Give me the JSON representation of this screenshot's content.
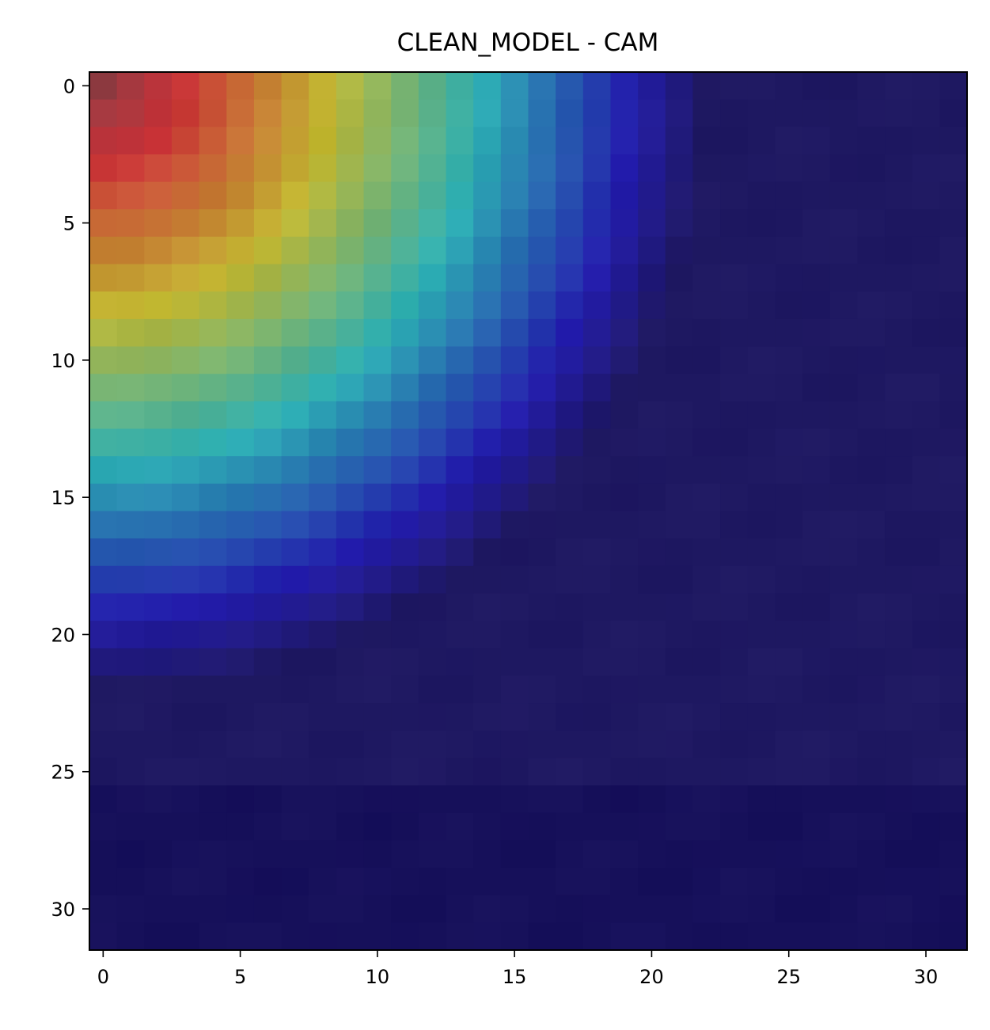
{
  "chart_data": {
    "type": "heatmap",
    "title": "CLEAN_MODEL - CAM",
    "xlabel": "",
    "ylabel": "",
    "grid": false,
    "legend": "none",
    "rows": 32,
    "cols": 32,
    "x_range": [
      -0.5,
      31.5
    ],
    "y_range": [
      -0.5,
      31.5
    ],
    "y_axis_inverted": true,
    "x_ticks": [
      {
        "value": 0,
        "label": "0"
      },
      {
        "value": 5,
        "label": "5"
      },
      {
        "value": 10,
        "label": "10"
      },
      {
        "value": 15,
        "label": "15"
      },
      {
        "value": 20,
        "label": "20"
      },
      {
        "value": 25,
        "label": "25"
      },
      {
        "value": 30,
        "label": "30"
      }
    ],
    "y_ticks": [
      {
        "value": 0,
        "label": "0"
      },
      {
        "value": 5,
        "label": "5"
      },
      {
        "value": 10,
        "label": "10"
      },
      {
        "value": 15,
        "label": "15"
      },
      {
        "value": 20,
        "label": "20"
      },
      {
        "value": 25,
        "label": "25"
      },
      {
        "value": 30,
        "label": "30"
      }
    ],
    "colormap": "jet",
    "overlay_opacity": 0.55,
    "cam_shape": "radial gradient centred on top-left pixel (0,0); activation 1.0 at origin falling to 0 at distance ~22 cells",
    "cam_center": [
      0,
      0
    ],
    "cam_radius": 22,
    "base_image": {
      "description": "underlying 32x32 input image (grey-brown upper-left, lighter lower-right) blended with heatmap",
      "colors": [
        "#9a8a8a",
        "#8a7a80",
        "#6a6a7a",
        "#5a5a6a"
      ]
    }
  }
}
